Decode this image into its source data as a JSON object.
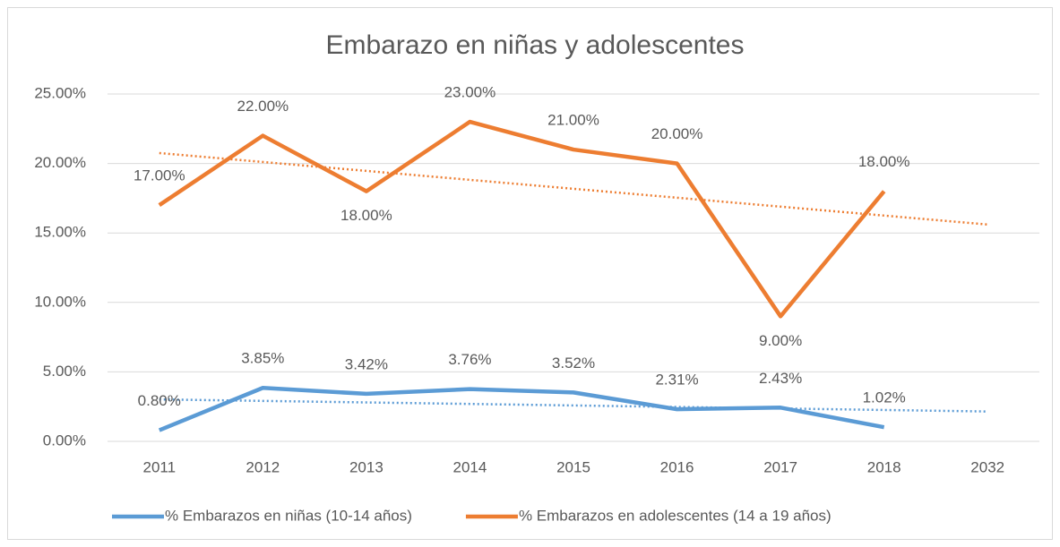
{
  "chart_data": {
    "type": "line",
    "title": "Embarazo en niñas y adolescentes",
    "categories": [
      "2011",
      "2012",
      "2013",
      "2014",
      "2015",
      "2016",
      "2017",
      "2018",
      "2032"
    ],
    "series": [
      {
        "name": "% Embarazos en niñas (10-14 años)",
        "color": "#5b9bd5",
        "values": [
          0.8,
          3.85,
          3.42,
          3.76,
          3.52,
          2.31,
          2.43,
          1.02,
          null
        ],
        "value_labels": [
          "0.80%",
          "3.85%",
          "3.42%",
          "3.76%",
          "3.52%",
          "2.31%",
          "2.43%",
          "1.02%",
          null
        ],
        "trendline": true
      },
      {
        "name": "% Embarazos en adolescentes (14 a 19 años)",
        "color": "#ed7d31",
        "values": [
          17,
          22,
          18,
          23,
          21,
          20,
          9,
          18,
          null
        ],
        "value_labels": [
          "17.00%",
          "22.00%",
          "18.00%",
          "23.00%",
          "21.00%",
          "20.00%",
          "9.00%",
          "18.00%",
          null
        ],
        "trendline": true
      }
    ],
    "ylim": [
      0,
      25
    ],
    "yticks": [
      {
        "value": 0,
        "label": "0.00%"
      },
      {
        "value": 5,
        "label": "5.00%"
      },
      {
        "value": 10,
        "label": "10.00%"
      },
      {
        "value": 15,
        "label": "15.00%"
      },
      {
        "value": 20,
        "label": "20.00%"
      },
      {
        "value": 25,
        "label": "25.00%"
      }
    ],
    "grid": true,
    "legend": "bottom"
  }
}
